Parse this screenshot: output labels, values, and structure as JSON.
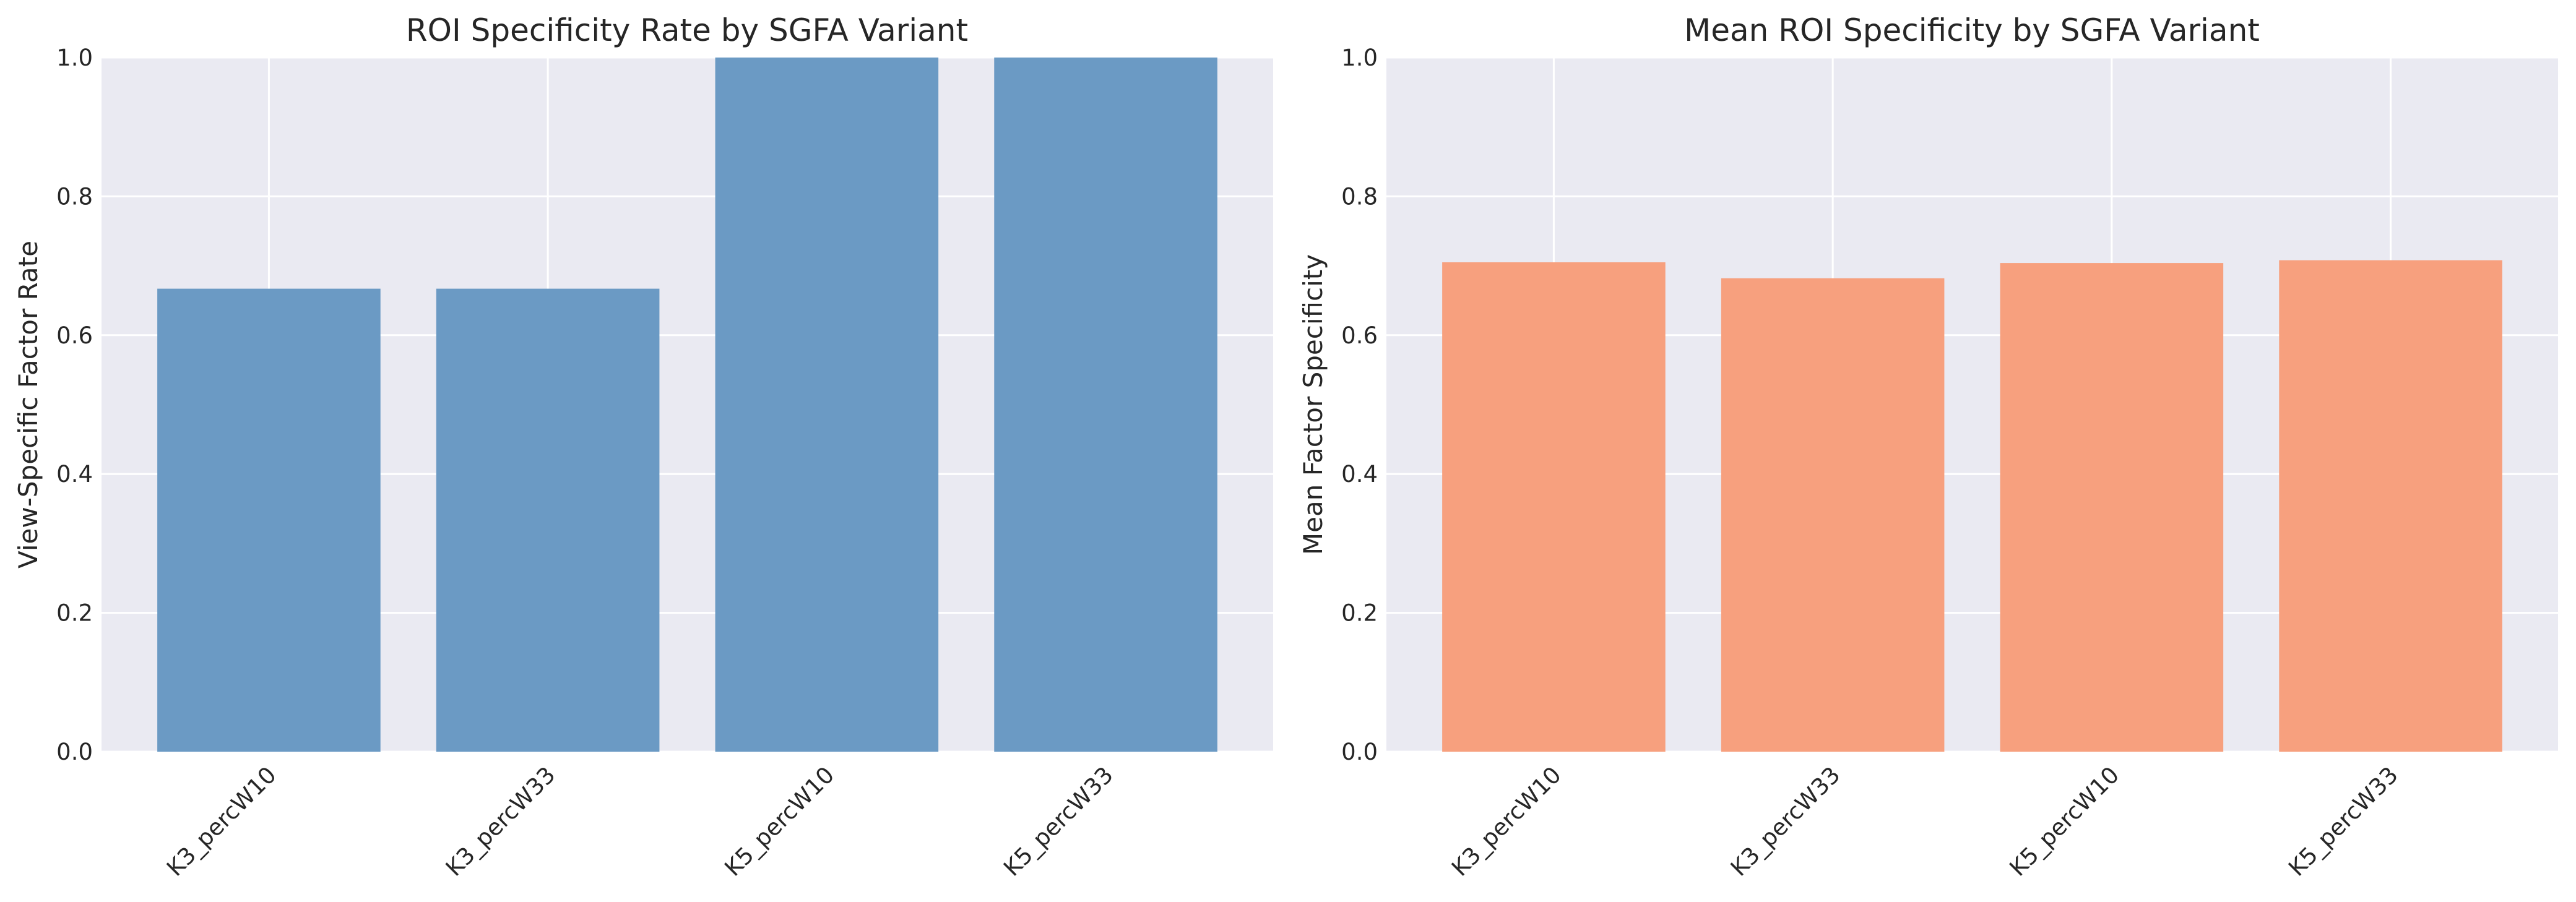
{
  "chart_data": [
    {
      "type": "bar",
      "title": "ROI Specificity Rate by SGFA Variant",
      "xlabel": "",
      "ylabel": "View-Specific Factor Rate",
      "categories": [
        "K3_percW10",
        "K3_percW33",
        "K5_percW10",
        "K5_percW33"
      ],
      "values": [
        0.667,
        0.667,
        1.0,
        1.0
      ],
      "ylim": [
        0,
        1.0
      ],
      "yticks": [
        "0.0",
        "0.2",
        "0.4",
        "0.6",
        "0.8",
        "1.0"
      ],
      "color": "#6b9ac4",
      "grid": true,
      "legend": "none"
    },
    {
      "type": "bar",
      "title": "Mean ROI Specificity by SGFA Variant",
      "xlabel": "",
      "ylabel": "Mean Factor Specificity",
      "categories": [
        "K3_percW10",
        "K3_percW33",
        "K5_percW10",
        "K5_percW33"
      ],
      "values": [
        0.705,
        0.682,
        0.704,
        0.708
      ],
      "ylim": [
        0,
        1.0
      ],
      "yticks": [
        "0.0",
        "0.2",
        "0.4",
        "0.6",
        "0.8",
        "1.0"
      ],
      "color": "#f7a07e",
      "grid": true,
      "legend": "none"
    }
  ]
}
